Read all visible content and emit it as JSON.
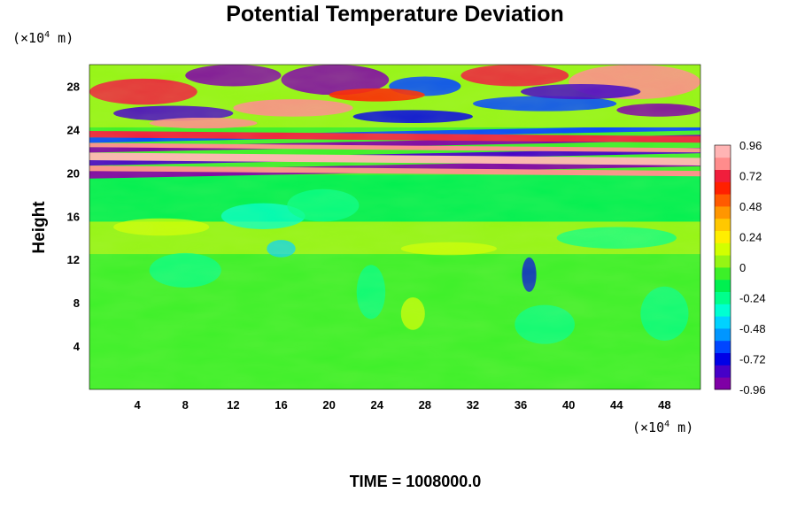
{
  "chart_data": {
    "type": "heatmap",
    "title": "Potential Temperature Deviation",
    "ylabel": "Height",
    "x_unit": {
      "prefix": "(×10",
      "exp": "4",
      "suffix": " m)"
    },
    "y_unit": {
      "prefix": "(×10",
      "exp": "4",
      "suffix": " m)"
    },
    "xlim": [
      0,
      51
    ],
    "ylim": [
      0,
      30
    ],
    "x_ticks": [
      4,
      8,
      12,
      16,
      20,
      24,
      28,
      32,
      36,
      40,
      44,
      48
    ],
    "x_tick_labels": [
      "4",
      "8",
      "12",
      "16",
      "20",
      "24",
      "28",
      "32",
      "36",
      "40",
      "44",
      "48"
    ],
    "y_ticks": [
      4,
      8,
      12,
      16,
      20,
      24,
      28
    ],
    "y_tick_labels": [
      "4",
      "8",
      "12",
      "16",
      "20",
      "24",
      "28"
    ],
    "colorbar": {
      "range": [
        -0.96,
        0.96
      ],
      "ticks": [
        0.96,
        0.72,
        0.48,
        0.24,
        0,
        -0.24,
        -0.48,
        -0.72,
        -0.96
      ],
      "tick_labels": [
        "0.96",
        "0.72",
        "0.48",
        "0.24",
        "0",
        "-0.24",
        "-0.48",
        "-0.72",
        "-0.96"
      ],
      "colors": [
        "#7f00a6",
        "#4600c8",
        "#0000e6",
        "#0046ff",
        "#0096ff",
        "#00d2ff",
        "#00ffd2",
        "#00ff8c",
        "#00f050",
        "#3cf028",
        "#96f514",
        "#d2ff00",
        "#ffee00",
        "#ffc800",
        "#ff9600",
        "#ff5a00",
        "#ff2000",
        "#f01e3c",
        "#ff8c8c",
        "#ffb4b4"
      ]
    },
    "field_description": "near-zero values (green) from 0 to ~20; strong alternating positive/negative bands (pink, purple, blue) from ~20 to ~24; mixed wave pattern (red, blue, purple) from ~24 to 30",
    "annotation": "TIME = 1008000.0"
  }
}
